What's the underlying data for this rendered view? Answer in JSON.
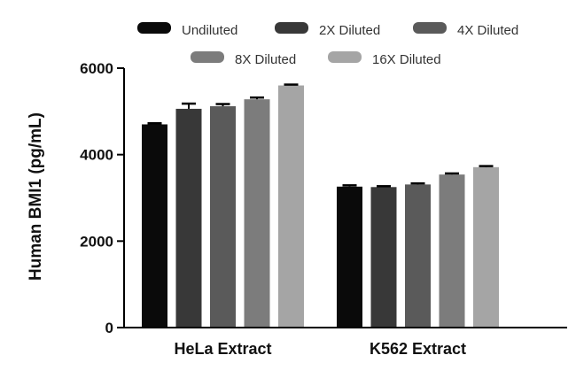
{
  "chart_data": {
    "type": "bar",
    "title": "",
    "xlabel": "",
    "ylabel": "Human BMI1 (pg/mL)",
    "ylim": [
      0,
      6000
    ],
    "yticks": [
      0,
      2000,
      4000,
      6000
    ],
    "grid": false,
    "legend_position": "top",
    "categories": [
      "HeLa Extract",
      "K562 Extract"
    ],
    "series": [
      {
        "name": "Undiluted",
        "color": "#0a0a0a",
        "values": [
          4700,
          3260
        ],
        "errors": [
          25,
          30
        ]
      },
      {
        "name": "2X Diluted",
        "color": "#383838",
        "values": [
          5060,
          3250
        ],
        "errors": [
          120,
          20
        ]
      },
      {
        "name": "4X Diluted",
        "color": "#5a5a5a",
        "values": [
          5120,
          3310
        ],
        "errors": [
          50,
          25
        ]
      },
      {
        "name": "8X Diluted",
        "color": "#7c7c7c",
        "values": [
          5280,
          3540
        ],
        "errors": [
          40,
          25
        ]
      },
      {
        "name": "16X Diluted",
        "color": "#a5a5a5",
        "values": [
          5600,
          3710
        ],
        "errors": [
          20,
          25
        ]
      }
    ]
  }
}
